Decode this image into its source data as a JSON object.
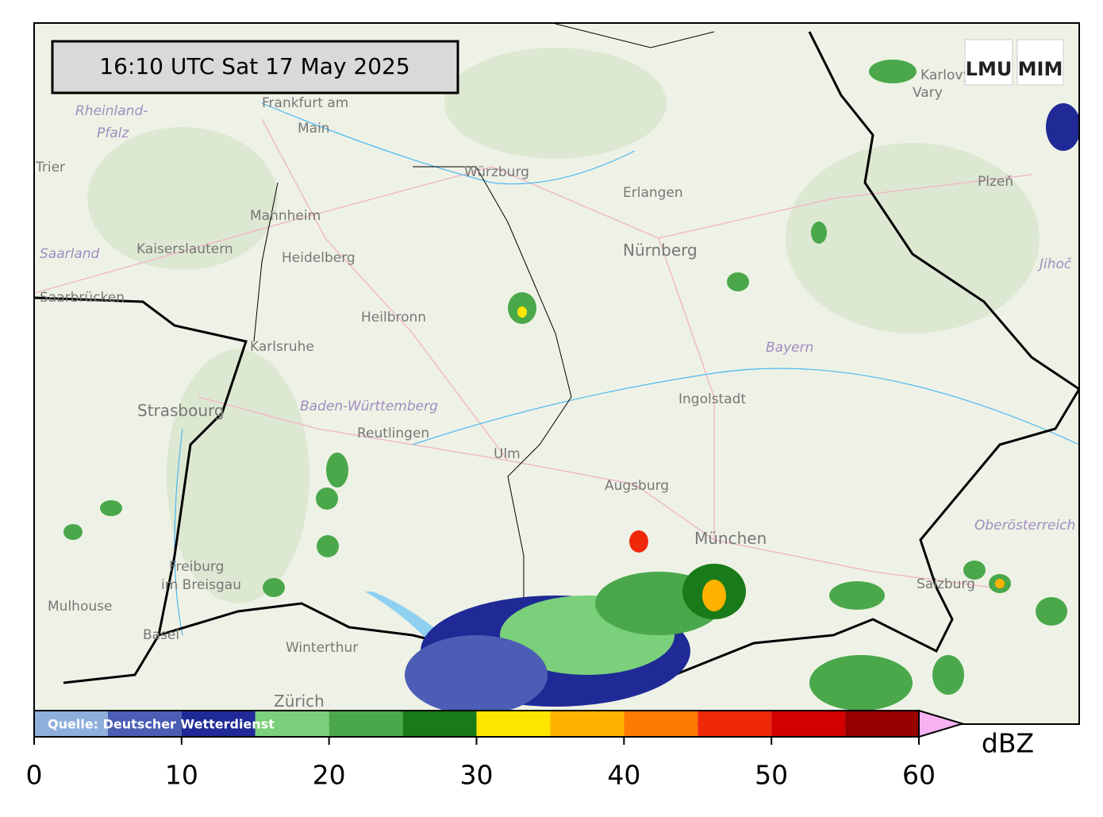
{
  "map": {
    "timestamp": "16:10 UTC  Sat 17 May 2025",
    "logos": [
      "LMU",
      "MIM"
    ],
    "places": [
      "Frankfurt am",
      "Main",
      "Rheinland-",
      "Pfalz",
      "Trier",
      "Würzburg",
      "Erlangen",
      "Nürnberg",
      "Mannheim",
      "Kaiserslautern",
      "Heidelberg",
      "Saarland",
      "Saarbrücken",
      "Heilbronn",
      "Karlsruhe",
      "Bayern",
      "Ingolstadt",
      "Strasbourg",
      "Baden-Württemberg",
      "Reutlingen",
      "Ulm",
      "Augsburg",
      "München",
      "Oberösterreich",
      "Freiburg",
      "im Breisgau",
      "Mulhouse",
      "Basel",
      "Winterthur",
      "Zürich",
      "Salzburg",
      "Plzeň",
      "Karlovy",
      "Vary",
      "Jihoč"
    ],
    "colorbar": {
      "bounds": [
        0,
        5,
        10,
        15,
        20,
        25,
        30,
        35,
        40,
        45,
        50,
        55,
        60
      ],
      "colors": [
        "#8eaedb",
        "#4b5db4",
        "#1f2a96",
        "#7bd07b",
        "#4aa84a",
        "#197a19",
        "#ffe600",
        "#ffb300",
        "#ff7a00",
        "#f0280a",
        "#d20000",
        "#980000"
      ],
      "extend_color": "#f7b2f2",
      "lim": [
        0,
        60
      ],
      "ticks": [
        0,
        10,
        20,
        30,
        40,
        50,
        60
      ],
      "unit": "dBZ",
      "source": "Quelle: Deutscher Wetterdienst"
    }
  }
}
